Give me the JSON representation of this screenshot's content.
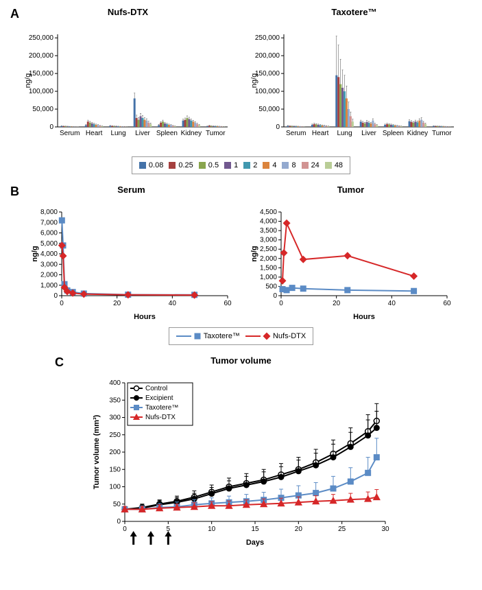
{
  "panelA": {
    "label": "A",
    "charts": [
      {
        "title": "Nufs-DTX",
        "ylim": 260000,
        "ytick": 50000,
        "ylabel": "ng/g",
        "categories": [
          "Serum",
          "Heart",
          "Lung",
          "Liver",
          "Spleen",
          "Kidney",
          "Tumor"
        ],
        "series": [
          {
            "t": "0.08",
            "color": "#4472a8",
            "v": [
              2500,
              5000,
              3000,
              80000,
              5000,
              18000,
              2000
            ],
            "e": [
              800,
              1500,
              1200,
              15000,
              2000,
              4000,
              600
            ]
          },
          {
            "t": "0.25",
            "color": "#a5403f",
            "v": [
              2000,
              15000,
              2500,
              25000,
              12000,
              20000,
              3500
            ],
            "e": [
              700,
              4000,
              1000,
              8000,
              3000,
              5000,
              1000
            ]
          },
          {
            "t": "0.5",
            "color": "#89a54e",
            "v": [
              1800,
              12000,
              2000,
              20000,
              15000,
              25000,
              2500
            ],
            "e": [
              600,
              3500,
              800,
              6000,
              4000,
              6000,
              800
            ]
          },
          {
            "t": "1",
            "color": "#71588f",
            "v": [
              1500,
              10000,
              1800,
              30000,
              10000,
              22000,
              2200
            ],
            "e": [
              500,
              3000,
              700,
              8000,
              3000,
              5000,
              700
            ]
          },
          {
            "t": "2",
            "color": "#4198af",
            "v": [
              1200,
              8000,
              1500,
              25000,
              8000,
              18000,
              2000
            ],
            "e": [
              400,
              2500,
              600,
              7000,
              2500,
              4000,
              600
            ]
          },
          {
            "t": "4",
            "color": "#db843d",
            "v": [
              1000,
              6000,
              1200,
              20000,
              6000,
              15000,
              1800
            ],
            "e": [
              350,
              2000,
              500,
              6000,
              2000,
              3500,
              500
            ]
          },
          {
            "t": "8",
            "color": "#93a9cf",
            "v": [
              800,
              5000,
              1000,
              18000,
              5000,
              12000,
              1500
            ],
            "e": [
              300,
              1800,
              400,
              5000,
              1800,
              3000,
              450
            ]
          },
          {
            "t": "24",
            "color": "#d19392",
            "v": [
              600,
              3000,
              800,
              12000,
              3000,
              8000,
              1200
            ],
            "e": [
              250,
              1200,
              350,
              4000,
              1200,
              2500,
              400
            ]
          },
          {
            "t": "48",
            "color": "#b9cd96",
            "v": [
              400,
              2000,
              600,
              8000,
              2000,
              5000,
              800
            ],
            "e": [
              200,
              800,
              300,
              3000,
              800,
              1800,
              300
            ]
          }
        ]
      },
      {
        "title": "Taxotere™",
        "ylim": 260000,
        "ytick": 50000,
        "ylabel": "ng/g",
        "categories": [
          "Serum",
          "Heart",
          "Lung",
          "Liver",
          "Spleen",
          "Kidney",
          "Tumor"
        ],
        "series": [
          {
            "t": "0.08",
            "color": "#4472a8",
            "v": [
              3000,
              6000,
              145000,
              15000,
              6000,
              16000,
              2500
            ],
            "e": [
              1000,
              2000,
              110000,
              4000,
              2000,
              4000,
              800
            ]
          },
          {
            "t": "0.25",
            "color": "#a5403f",
            "v": [
              2500,
              8000,
              140000,
              12000,
              8000,
              14000,
              2200
            ],
            "e": [
              900,
              2500,
              90000,
              3500,
              2500,
              3500,
              700
            ]
          },
          {
            "t": "0.5",
            "color": "#89a54e",
            "v": [
              2200,
              7000,
              120000,
              10000,
              7000,
              12000,
              2000
            ],
            "e": [
              800,
              2200,
              70000,
              3000,
              2200,
              3000,
              650
            ]
          },
          {
            "t": "1",
            "color": "#71588f",
            "v": [
              2000,
              6000,
              110000,
              14000,
              6000,
              15000,
              1800
            ],
            "e": [
              700,
              2000,
              50000,
              4000,
              2000,
              4000,
              600
            ]
          },
          {
            "t": "2",
            "color": "#4198af",
            "v": [
              1800,
              5000,
              100000,
              12000,
              5000,
              13000,
              1600
            ],
            "e": [
              650,
              1800,
              45000,
              3500,
              1800,
              3500,
              550
            ]
          },
          {
            "t": "4",
            "color": "#db843d",
            "v": [
              1500,
              4000,
              80000,
              10000,
              4000,
              18000,
              1400
            ],
            "e": [
              550,
              1500,
              35000,
              3000,
              1500,
              5000,
              500
            ]
          },
          {
            "t": "8",
            "color": "#93a9cf",
            "v": [
              1200,
              3500,
              50000,
              18000,
              3500,
              20000,
              1200
            ],
            "e": [
              450,
              1300,
              20000,
              5000,
              1300,
              6000,
              450
            ]
          },
          {
            "t": "24",
            "color": "#d19392",
            "v": [
              1000,
              2500,
              30000,
              8000,
              2500,
              12000,
              900
            ],
            "e": [
              400,
              1000,
              12000,
              2500,
              1000,
              3500,
              350
            ]
          },
          {
            "t": "48",
            "color": "#b9cd96",
            "v": [
              700,
              1800,
              15000,
              5000,
              1800,
              8000,
              600
            ],
            "e": [
              300,
              700,
              7000,
              1800,
              700,
              2500,
              250
            ]
          }
        ]
      }
    ],
    "legend": [
      "0.08",
      "0.25",
      "0.5",
      "1",
      "2",
      "4",
      "8",
      "24",
      "48"
    ],
    "legend_colors": [
      "#4472a8",
      "#a5403f",
      "#89a54e",
      "#71588f",
      "#4198af",
      "#db843d",
      "#93a9cf",
      "#d19392",
      "#b9cd96"
    ]
  },
  "panelB": {
    "label": "B",
    "charts": [
      {
        "title": "Serum",
        "xlabel": "Hours",
        "ylabel": "ng/g",
        "xlim": 60,
        "xtick": 20,
        "ylim": 8000,
        "ytick": 1000,
        "series": [
          {
            "name": "Taxotere™",
            "color": "#5b8bc5",
            "marker": "square",
            "x": [
              0.08,
              0.5,
              1,
              2,
              4,
              8,
              24,
              48
            ],
            "y": [
              7200,
              4800,
              1100,
              500,
              350,
              200,
              100,
              80
            ]
          },
          {
            "name": "Nufs-DTX",
            "color": "#d62728",
            "marker": "diamond",
            "x": [
              0.08,
              0.5,
              1,
              2,
              4,
              8,
              24,
              48
            ],
            "y": [
              4800,
              3800,
              800,
              400,
              250,
              150,
              80,
              60
            ]
          }
        ]
      },
      {
        "title": "Tumor",
        "xlabel": "Hours",
        "ylabel": "ng/g",
        "xlim": 60,
        "xtick": 20,
        "ylim": 4500,
        "ytick": 500,
        "series": [
          {
            "name": "Taxotere™",
            "color": "#5b8bc5",
            "marker": "square",
            "x": [
              0.5,
              2,
              4,
              8,
              24,
              48
            ],
            "y": [
              350,
              300,
              420,
              380,
              300,
              250
            ]
          },
          {
            "name": "Nufs-DTX",
            "color": "#d62728",
            "marker": "diamond",
            "x": [
              0.5,
              1,
              2,
              8,
              24,
              48
            ],
            "y": [
              800,
              2300,
              3900,
              1950,
              2150,
              1050
            ]
          }
        ]
      }
    ],
    "legend": [
      {
        "name": "Taxotere™",
        "color": "#5b8bc5",
        "marker": "square"
      },
      {
        "name": "Nufs-DTX",
        "color": "#d62728",
        "marker": "diamond"
      }
    ]
  },
  "panelC": {
    "label": "C",
    "title": "Tumor volume",
    "xlabel": "Days",
    "ylabel": "Tumor volume (mm³)",
    "xlim": 30,
    "xtick": 5,
    "ylim": 400,
    "ytick": 50,
    "series": [
      {
        "name": "Control",
        "color": "#000000",
        "marker": "open-circle",
        "x": [
          0,
          2,
          4,
          6,
          8,
          10,
          12,
          14,
          16,
          18,
          20,
          22,
          24,
          26,
          28,
          29
        ],
        "y": [
          35,
          40,
          50,
          58,
          70,
          85,
          100,
          110,
          120,
          135,
          150,
          170,
          195,
          225,
          260,
          290
        ],
        "e": [
          8,
          10,
          12,
          15,
          18,
          20,
          25,
          28,
          30,
          32,
          35,
          38,
          40,
          45,
          48,
          50
        ]
      },
      {
        "name": "Excipient",
        "color": "#000000",
        "marker": "circle",
        "x": [
          0,
          2,
          4,
          6,
          8,
          10,
          12,
          14,
          16,
          18,
          20,
          22,
          24,
          26,
          28,
          29
        ],
        "y": [
          35,
          38,
          48,
          55,
          65,
          80,
          95,
          105,
          115,
          128,
          145,
          162,
          185,
          215,
          248,
          270
        ],
        "e": [
          8,
          10,
          12,
          14,
          16,
          18,
          22,
          25,
          28,
          30,
          32,
          35,
          38,
          42,
          45,
          48
        ]
      },
      {
        "name": "Taxotere™",
        "color": "#5b8bc5",
        "marker": "square",
        "x": [
          0,
          2,
          4,
          6,
          8,
          10,
          12,
          14,
          16,
          18,
          20,
          22,
          24,
          26,
          28,
          29
        ],
        "y": [
          35,
          35,
          40,
          42,
          48,
          52,
          55,
          58,
          62,
          68,
          75,
          82,
          95,
          115,
          140,
          185
        ],
        "e": [
          8,
          10,
          12,
          14,
          15,
          16,
          18,
          20,
          22,
          25,
          28,
          30,
          35,
          40,
          45,
          55
        ]
      },
      {
        "name": "Nufs-DTX",
        "color": "#d62728",
        "marker": "triangle",
        "x": [
          0,
          2,
          4,
          6,
          8,
          10,
          12,
          14,
          16,
          18,
          20,
          22,
          24,
          26,
          28,
          29
        ],
        "y": [
          35,
          35,
          38,
          40,
          42,
          45,
          45,
          48,
          50,
          52,
          55,
          58,
          60,
          63,
          65,
          70
        ],
        "e": [
          8,
          8,
          10,
          10,
          12,
          12,
          14,
          14,
          15,
          15,
          16,
          16,
          18,
          18,
          20,
          22
        ]
      }
    ],
    "arrows": [
      1,
      3,
      5
    ]
  }
}
